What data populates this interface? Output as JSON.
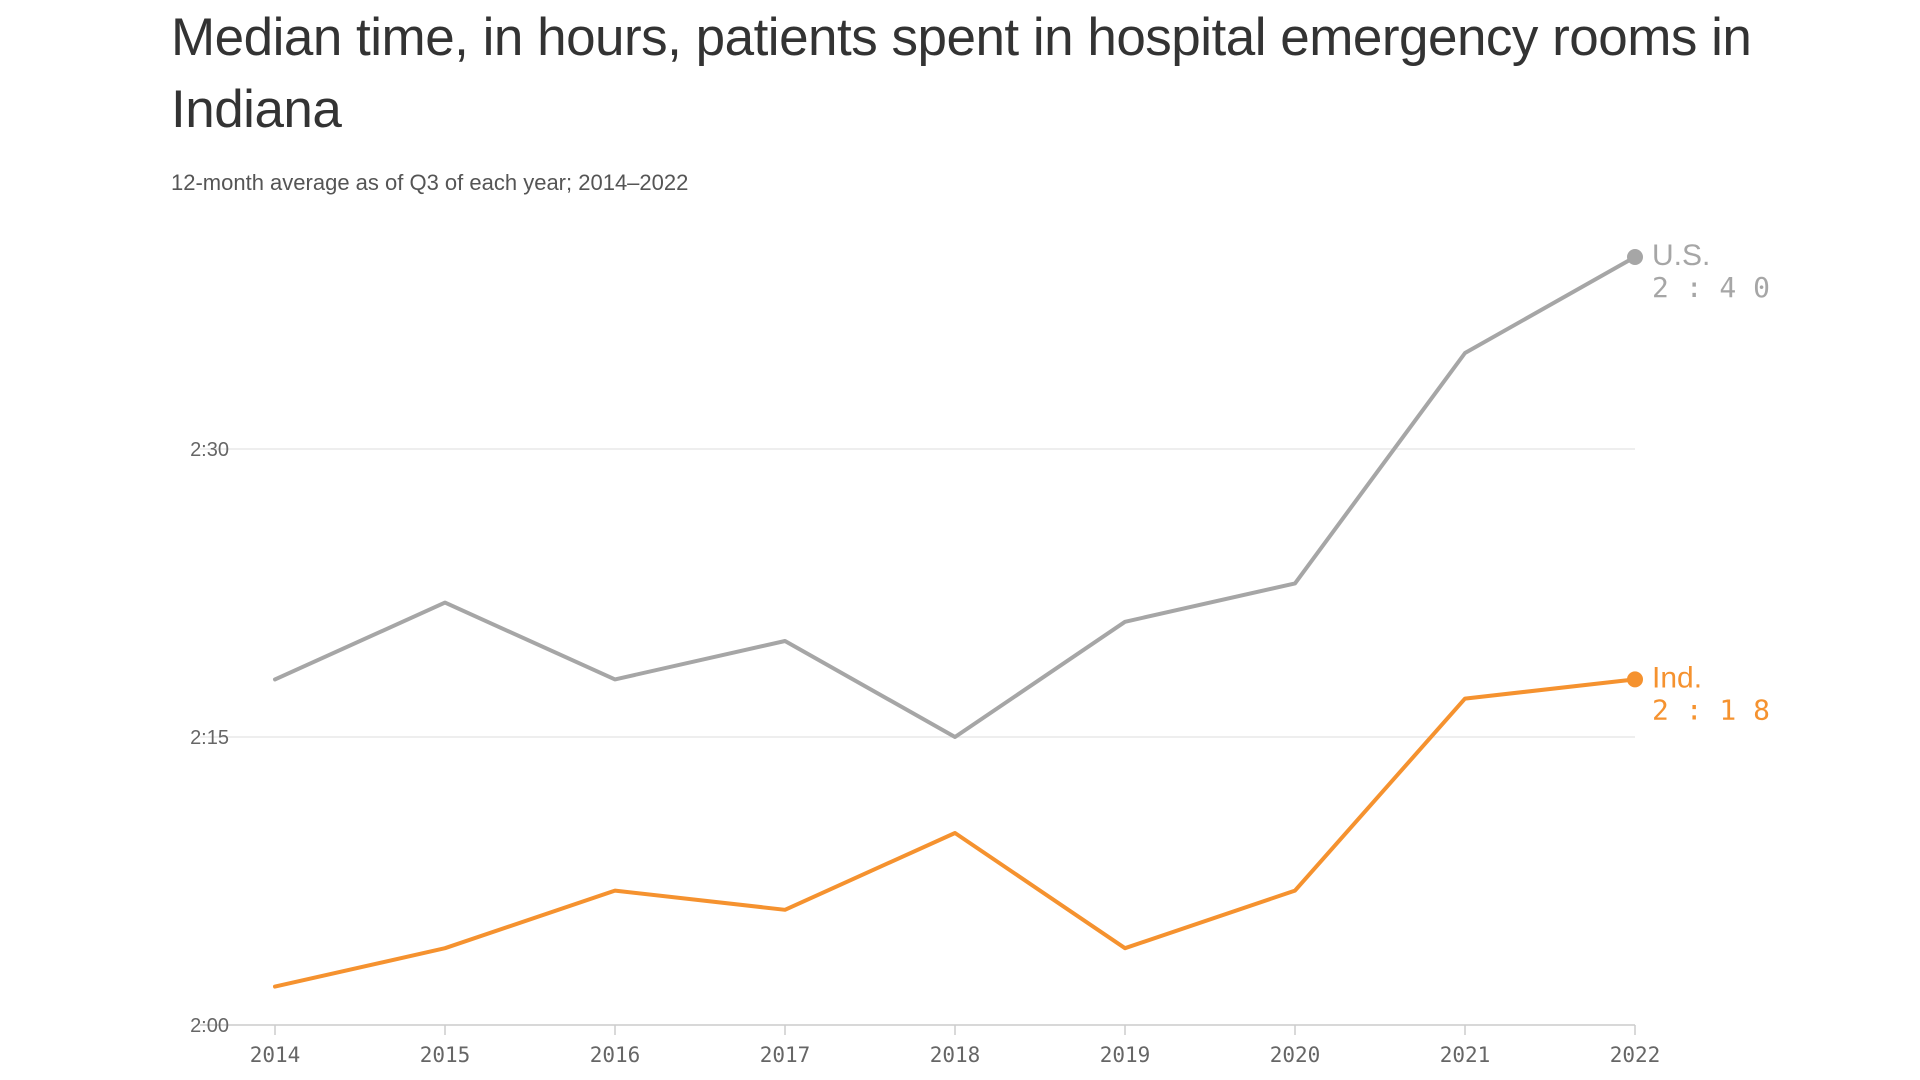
{
  "title": "Median time, in hours, patients spent in hospital emergency rooms in Indiana",
  "subtitle": "12-month average as of Q3 of each year; 2014–2022",
  "colors": {
    "us": "#a6a6a6",
    "ind": "#f5922f",
    "grid": "#e3e3e3",
    "axis": "#cccccc",
    "text": "#333333"
  },
  "chart_data": {
    "type": "line",
    "title": "Median time, in hours, patients spent in hospital emergency rooms in Indiana",
    "subtitle": "12-month average as of Q3 of each year; 2014–2022",
    "xlabel": "",
    "ylabel": "",
    "categories": [
      "2014",
      "2015",
      "2016",
      "2017",
      "2018",
      "2019",
      "2020",
      "2021",
      "2022"
    ],
    "y_unit": "minutes",
    "ylim": [
      120,
      165
    ],
    "yticks": [
      {
        "value": 120,
        "label": "2:00"
      },
      {
        "value": 135,
        "label": "2:15"
      },
      {
        "value": 150,
        "label": "2:30"
      }
    ],
    "grid": true,
    "legend": "direct labels at line ends",
    "series": [
      {
        "key": "us",
        "name": "U.S.",
        "end_label": "2:40",
        "color": "#a6a6a6",
        "values": [
          138,
          142,
          138,
          140,
          135,
          141,
          143,
          155,
          160
        ]
      },
      {
        "key": "ind",
        "name": "Ind.",
        "end_label": "2:18",
        "color": "#f5922f",
        "values": [
          122,
          124,
          127,
          126,
          130,
          124,
          127,
          137,
          138
        ]
      }
    ]
  }
}
